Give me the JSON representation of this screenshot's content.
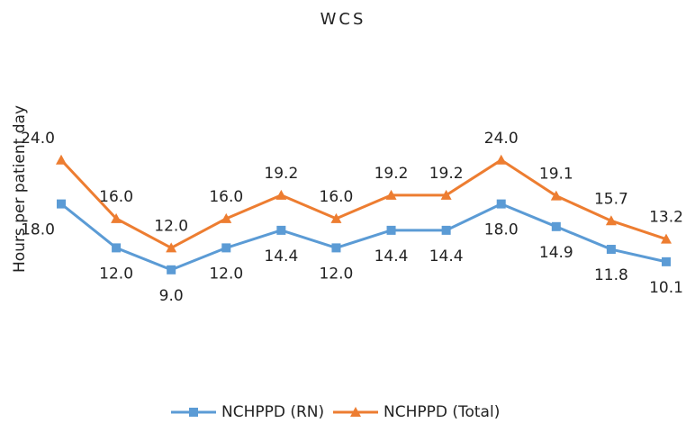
{
  "chart_data": {
    "type": "line",
    "title": "WCS",
    "y_label": "Hours per patient day",
    "categories": [
      null,
      null,
      null,
      null,
      null,
      null,
      null,
      null,
      null,
      null,
      null,
      null
    ],
    "ylim": [
      0,
      30
    ],
    "grid": false,
    "legend": "bottom",
    "series": [
      {
        "name": "NCHPPD (RN)",
        "color": "#5b9bd5",
        "marker": "square",
        "values": [
          18,
          12,
          9,
          12,
          14.4,
          12,
          14.4,
          14.4,
          18,
          14.9,
          11.8,
          10.1
        ],
        "value_labels": [
          "18.0",
          "12.0",
          "9.0",
          "12.0",
          "14.4",
          "12.0",
          "14.4",
          "14.4",
          "18.0",
          "14.9",
          "11.8",
          "10.1"
        ]
      },
      {
        "name": "NCHPPD (Total)",
        "color": "#ed7d31",
        "marker": "triangle",
        "values": [
          24,
          16,
          12,
          16,
          19.2,
          16,
          19.2,
          19.2,
          24,
          19.1,
          15.7,
          13.2
        ],
        "value_labels": [
          "24.0",
          "16.0",
          "12.0",
          "16.0",
          "19.2",
          "16.0",
          "19.2",
          "19.2",
          "24.0",
          "19.1",
          "15.7",
          "13.2"
        ]
      }
    ]
  }
}
